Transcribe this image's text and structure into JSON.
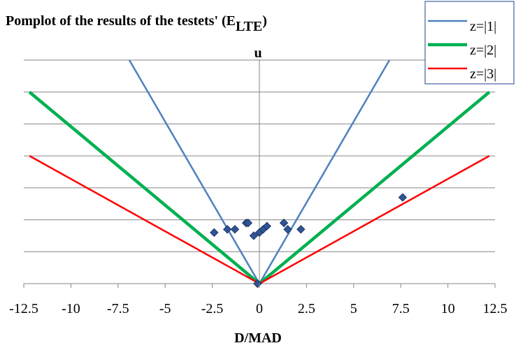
{
  "chart_data": {
    "type": "scatter",
    "title": "Pomplot of the results of the testets' (E",
    "title_subscript": "LTE",
    "title_suffix": ")",
    "ylabel": "u",
    "xlabel": "D/MAD",
    "xlim": [
      -12.5,
      12.5
    ],
    "ylim": [
      0,
      7
    ],
    "x_ticks": [
      {
        "value": -12.5,
        "label": "-12.5"
      },
      {
        "value": -10,
        "label": "-10"
      },
      {
        "value": -7.5,
        "label": "-7.5"
      },
      {
        "value": -5,
        "label": "-5"
      },
      {
        "value": -2.5,
        "label": "-2.5"
      },
      {
        "value": 0,
        "label": "0"
      },
      {
        "value": 2.5,
        "label": "2.5"
      },
      {
        "value": 5,
        "label": "5"
      },
      {
        "value": 7.5,
        "label": "7.5"
      },
      {
        "value": 10,
        "label": "10"
      },
      {
        "value": 12.5,
        "label": "12.5"
      }
    ],
    "y_gridlines": [
      1,
      2,
      3,
      4,
      5,
      6,
      7
    ],
    "grid": true,
    "legend_position": "top-right",
    "series": [
      {
        "name": "z=|1|",
        "type": "line",
        "color": "#4f81bd",
        "points": [
          [
            -6.9,
            7
          ],
          [
            0,
            0
          ],
          [
            6.9,
            7
          ]
        ]
      },
      {
        "name": "z=|2|",
        "type": "line",
        "color": "#00b050",
        "points": [
          [
            -12.2,
            6
          ],
          [
            0,
            0
          ],
          [
            12.2,
            6
          ]
        ]
      },
      {
        "name": "z=|3|",
        "type": "line",
        "color": "#ff0000",
        "points": [
          [
            -12.2,
            4
          ],
          [
            0,
            0
          ],
          [
            12.2,
            4
          ]
        ]
      },
      {
        "name": "",
        "type": "scatter",
        "color": "#2f5597",
        "points": [
          [
            -2.4,
            1.6
          ],
          [
            -1.7,
            1.7
          ],
          [
            -1.3,
            1.7
          ],
          [
            -0.7,
            1.9
          ],
          [
            -0.6,
            1.9
          ],
          [
            -0.3,
            1.5
          ],
          [
            0.0,
            1.6
          ],
          [
            0.2,
            1.7
          ],
          [
            0.4,
            1.8
          ],
          [
            1.3,
            1.9
          ],
          [
            1.5,
            1.7
          ],
          [
            2.2,
            1.7
          ],
          [
            7.6,
            2.7
          ],
          [
            -0.1,
            0.0
          ]
        ]
      }
    ]
  }
}
